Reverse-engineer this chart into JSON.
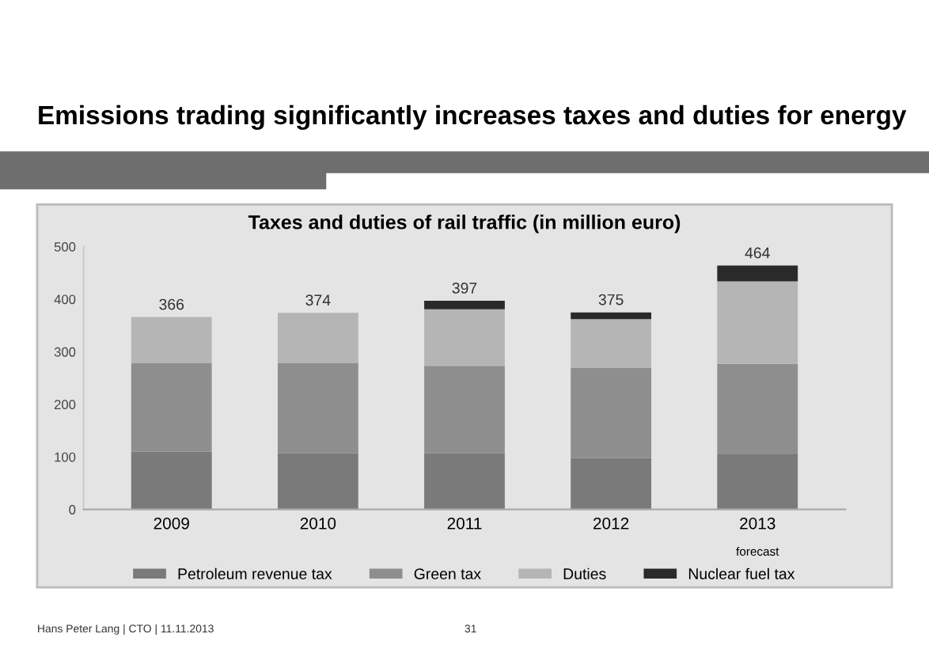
{
  "chart_data": {
    "type": "bar",
    "title": "Emissions trading significantly increases taxes and duties for energy",
    "subtitle": "Taxes and duties of rail traffic (in million euro)",
    "categories": [
      "2009",
      "2010",
      "2011",
      "2012",
      "2013"
    ],
    "stacked": true,
    "series": [
      {
        "name": "Petroleum revenue tax",
        "color": "#7a7a7a",
        "values": [
          110,
          107,
          107,
          98,
          105
        ]
      },
      {
        "name": "Green tax",
        "color": "#8e8e8e",
        "values": [
          169,
          172,
          166,
          171,
          172
        ]
      },
      {
        "name": "Duties",
        "color": "#b5b5b5",
        "values": [
          87,
          95,
          108,
          93,
          157
        ]
      },
      {
        "name": "Nuclear fuel tax",
        "color": "#2a2a2a",
        "values": [
          0,
          0,
          16,
          13,
          30
        ]
      }
    ],
    "totals": [
      "366",
      "374",
      "397",
      "375",
      "464"
    ],
    "ylim": [
      0,
      500
    ],
    "yticks": [
      0,
      100,
      200,
      300,
      400,
      500
    ],
    "grid": false,
    "legend": "bottom",
    "annotations": [
      "forecast",
      "Hans Peter Lang | CTO | 11.11.2013",
      "31"
    ]
  }
}
